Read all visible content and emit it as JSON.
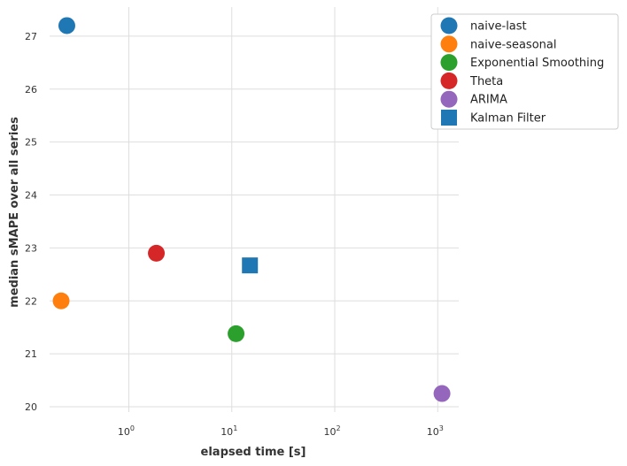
{
  "chart_data": {
    "type": "scatter",
    "xscale": "log",
    "xlabel": "elapsed time [s]",
    "ylabel": "median sMAPE over all series",
    "xlim": [
      0.17,
      1600
    ],
    "ylim": [
      19.9,
      27.55
    ],
    "x_ticks": [
      {
        "value": 1,
        "base": "10",
        "exp": "0"
      },
      {
        "value": 10,
        "base": "10",
        "exp": "1"
      },
      {
        "value": 100,
        "base": "10",
        "exp": "2"
      },
      {
        "value": 1000,
        "base": "10",
        "exp": "3"
      }
    ],
    "y_ticks": [
      {
        "value": 20,
        "label": "20"
      },
      {
        "value": 21,
        "label": "21"
      },
      {
        "value": 22,
        "label": "22"
      },
      {
        "value": 23,
        "label": "23"
      },
      {
        "value": 24,
        "label": "24"
      },
      {
        "value": 25,
        "label": "25"
      },
      {
        "value": 26,
        "label": "26"
      },
      {
        "value": 27,
        "label": "27"
      }
    ],
    "grid": true,
    "legend_position": "top-right",
    "series": [
      {
        "name": "naive-last",
        "marker": "circle",
        "color": "#1f77b4",
        "x": 0.25,
        "y": 27.2
      },
      {
        "name": "naive-seasonal",
        "marker": "circle",
        "color": "#ff7f0e",
        "x": 0.22,
        "y": 22.0
      },
      {
        "name": "Exponential Smoothing",
        "marker": "circle",
        "color": "#2ca02c",
        "x": 11,
        "y": 21.38
      },
      {
        "name": "Theta",
        "marker": "circle",
        "color": "#d62728",
        "x": 1.85,
        "y": 22.9
      },
      {
        "name": "ARIMA",
        "marker": "circle",
        "color": "#9467bd",
        "x": 1100,
        "y": 20.25
      },
      {
        "name": "Kalman Filter",
        "marker": "square",
        "color": "#1f77b4",
        "x": 15,
        "y": 22.67
      }
    ]
  }
}
